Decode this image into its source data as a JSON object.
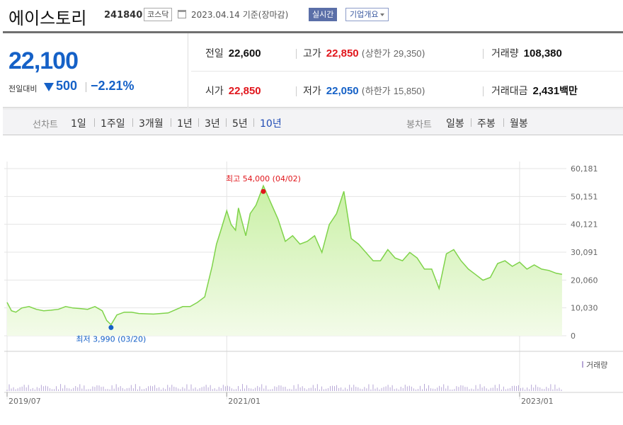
{
  "header": {
    "name": "에이스토리",
    "code": "241840",
    "market": "코스닥",
    "date": "2023.04.14",
    "basis": "기준(장마감)",
    "realtime_label": "실시간",
    "company_info_label": "기업개요"
  },
  "quote": {
    "price": "22,100",
    "change_label": "전일대비",
    "change": "500",
    "change_pct": "−2.21%",
    "prev_close_label": "전일",
    "prev_close": "22,600",
    "high_label": "고가",
    "high": "22,850",
    "upper_limit_label": "상한가",
    "upper_limit": "29,350",
    "volume_label": "거래량",
    "volume": "108,380",
    "open_label": "시가",
    "open": "22,850",
    "low_label": "저가",
    "low": "22,050",
    "lower_limit_label": "하한가",
    "lower_limit": "15,850",
    "trade_value_label": "거래대금",
    "trade_value": "2,431",
    "trade_value_unit": "백만"
  },
  "period": {
    "line_label": "선차트",
    "line_options": [
      "1일",
      "1주일",
      "3개월",
      "1년",
      "3년",
      "5년",
      "10년"
    ],
    "selected": "10년",
    "candle_label": "봉차트",
    "candle_options": [
      "일봉",
      "주봉",
      "월봉"
    ]
  },
  "colors": {
    "up": "#e1161c",
    "down": "#1561c7",
    "area_line": "#7fd34a",
    "area_fill_top": "#c9f0a5",
    "area_fill_bottom": "#f3fbe9",
    "volume_bar": "#b7a7d6"
  },
  "chart_data": {
    "type": "area",
    "y_ticks": [
      "60,181",
      "50,151",
      "40,121",
      "30,091",
      "20,060",
      "10,030",
      "0"
    ],
    "y_tick_values": [
      60181,
      50151,
      40121,
      30091,
      20060,
      10030,
      0
    ],
    "ylim": [
      0,
      60181
    ],
    "x_ticks": [
      "2019/07",
      "2021/01",
      "2023/01"
    ],
    "x_tick_values": [
      2019.5,
      2021.0,
      2023.0
    ],
    "xlim": [
      2019.5,
      2023.3
    ],
    "high_annotation": {
      "label": "최고 54,000 (04/02)",
      "x": 2021.25,
      "y": 54000
    },
    "low_annotation": {
      "label": "최저 3,990 (03/20)",
      "x": 2020.21,
      "y": 3990
    },
    "volume_label": "거래량",
    "series": [
      {
        "x": [
          2019.5,
          2019.53,
          2019.56,
          2019.6,
          2019.65,
          2019.7,
          2019.75,
          2019.8,
          2019.85,
          2019.9,
          2019.95,
          2020.0,
          2020.05,
          2020.1,
          2020.15,
          2020.18,
          2020.21,
          2020.25,
          2020.3,
          2020.35,
          2020.4,
          2020.5,
          2020.6,
          2020.7,
          2020.75,
          2020.8,
          2020.85,
          2020.9,
          2020.93,
          2020.96,
          2021.0,
          2021.03,
          2021.06,
          2021.08,
          2021.1,
          2021.13,
          2021.16,
          2021.2,
          2021.25,
          2021.3,
          2021.35,
          2021.4,
          2021.45,
          2021.5,
          2021.55,
          2021.6,
          2021.65,
          2021.7,
          2021.75,
          2021.8,
          2021.85,
          2021.9,
          2021.95,
          2022.0,
          2022.05,
          2022.1,
          2022.15,
          2022.2,
          2022.25,
          2022.3,
          2022.35,
          2022.4,
          2022.45,
          2022.5,
          2022.55,
          2022.6,
          2022.65,
          2022.7,
          2022.75,
          2022.8,
          2022.85,
          2022.9,
          2022.95,
          2023.0,
          2023.05,
          2023.1,
          2023.15,
          2023.2,
          2023.25,
          2023.29
        ],
        "values": [
          12000,
          9000,
          8500,
          10000,
          10500,
          9500,
          9000,
          9200,
          9500,
          10500,
          10000,
          9800,
          9500,
          10500,
          9000,
          5500,
          3990,
          7500,
          8500,
          8500,
          8000,
          7800,
          8200,
          10500,
          10500,
          12000,
          14000,
          25000,
          33000,
          38000,
          45000,
          40000,
          38000,
          46000,
          42000,
          36000,
          44000,
          47000,
          54000,
          48000,
          42000,
          34000,
          36000,
          33000,
          34000,
          36000,
          30000,
          40000,
          44000,
          52000,
          35000,
          33000,
          30000,
          27000,
          27000,
          31000,
          28000,
          27000,
          30000,
          28000,
          24000,
          24000,
          17000,
          29500,
          31000,
          27000,
          24000,
          22000,
          20000,
          21000,
          26000,
          27000,
          25000,
          26500,
          24000,
          25500,
          24000,
          23500,
          22500,
          22100
        ]
      }
    ]
  }
}
